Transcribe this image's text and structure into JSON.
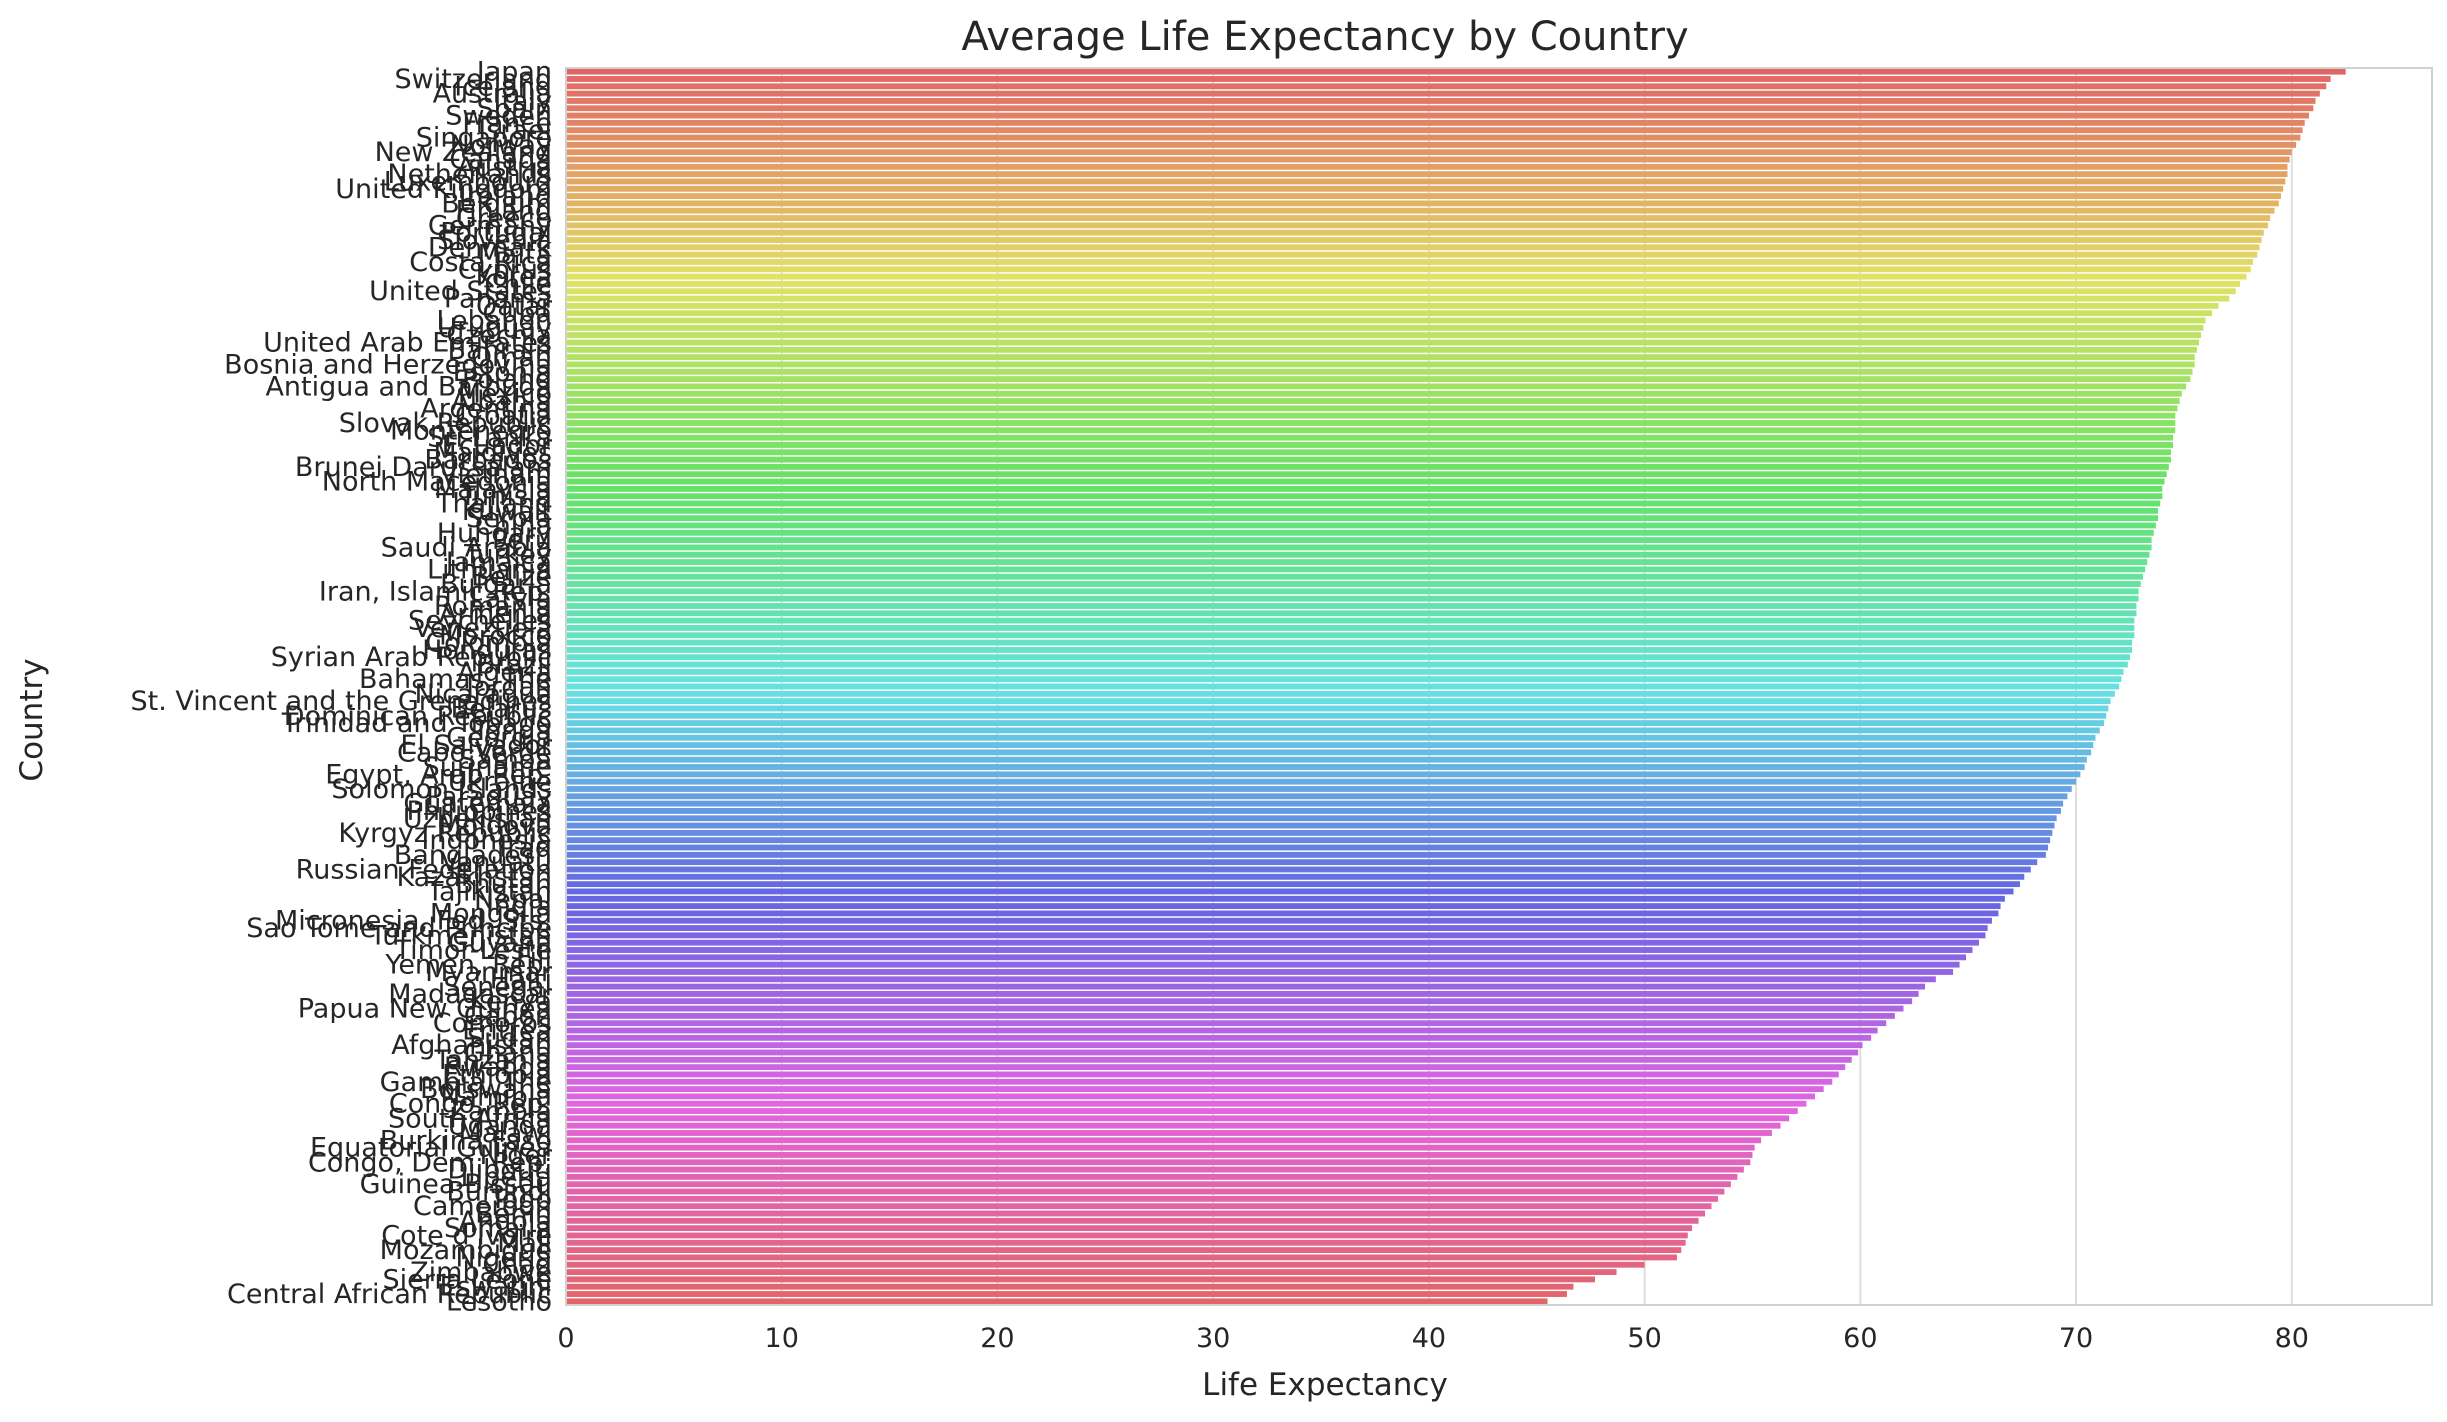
{
  "chart_data": {
    "type": "bar",
    "orientation": "horizontal",
    "title": "Average Life Expectancy by Country",
    "xlabel": "Life Expectancy",
    "ylabel": "Country",
    "xlim": [
      0,
      86.5
    ],
    "xticks": [
      0,
      10,
      20,
      30,
      40,
      50,
      60,
      70,
      80
    ],
    "grid": "vertical",
    "palette": "husl",
    "categories": [
      "Japan",
      "Switzerland",
      "Iceland",
      "Australia",
      "Italy",
      "Spain",
      "Sweden",
      "France",
      "Israel",
      "Singapore",
      "Norway",
      "New Zealand",
      "Canada",
      "Austria",
      "Netherlands",
      "Luxembourg",
      "United Kingdom",
      "Ireland",
      "Belgium",
      "Finland",
      "Greece",
      "Germany",
      "Portugal",
      "Slovenia",
      "Denmark",
      "Malta",
      "Costa Rica",
      "Cyprus",
      "Korea",
      "Chile",
      "United States",
      "Panama",
      "Qatar",
      "Cuba",
      "Lebanon",
      "Uruguay",
      "Czechia",
      "United Arab Emirates",
      "Bahrain",
      "Oman",
      "Bosnia and Herzegovina",
      "Estonia",
      "Poland",
      "Antigua and Barbuda",
      "Mexico",
      "Albania",
      "Argentina",
      "Croatia",
      "Slovak Republic",
      "Montenegro",
      "Sri Lanka",
      "Ecuador",
      "Maldives",
      "Barbados",
      "Brunei Darussalam",
      "Vietnam",
      "North Macedonia",
      "Malaysia",
      "Tunisia",
      "Thailand",
      "Kuwait",
      "Serbia",
      "China",
      "Hungary",
      "Peru",
      "Saudi Arabia",
      "Turkey",
      "Jamaica",
      "Lithuania",
      "Belize",
      "Bulgaria",
      "Iran, Islamic Rep.",
      "Latvia",
      "Romania",
      "Armenia",
      "Seychelles",
      "Venezuela",
      "Morocco",
      "Colombia",
      "Honduras",
      "Syrian Arab Republic",
      "Brazil",
      "Algeria",
      "Bahamas, The",
      "Jordan",
      "Nicaragua",
      "St. Vincent and the Grenadines",
      "Belarus",
      "Dominican Republic",
      "Trinidad and Tobago",
      "Tonga",
      "Georgia",
      "El Salvador",
      "Cabo Verde",
      "Samoa",
      "Suriname",
      "Egypt, Arab Rep.",
      "Ukraine",
      "Solomon Islands",
      "Paraguay",
      "Guatemala",
      "Philippines",
      "Uzbekistan",
      "Moldova",
      "Kyrgyz Republic",
      "Indonesia",
      "Iraq",
      "Bangladesh",
      "Vanuatu",
      "Russian Federation",
      "Kazakhstan",
      "Bhutan",
      "Tajikistan",
      "Nepal",
      "India",
      "Mongolia",
      "Micronesia, Fed. Sts.",
      "Sao Tome and Principe",
      "Turkmenistan",
      "Guyana",
      "Timor-Leste",
      "Fiji",
      "Yemen, Rep.",
      "Myanmar",
      "Haiti",
      "Senegal",
      "Madagascar",
      "Kenya",
      "Papua New Guinea",
      "Gabon",
      "Comoros",
      "Eritrea",
      "Sudan",
      "Afghanistan",
      "Ghana",
      "Tanzania",
      "Rwanda",
      "Ethiopia",
      "Gambia, The",
      "Botswana",
      "Namibia",
      "Congo, Rep.",
      "Zambia",
      "South Africa",
      "Uganda",
      "Malawi",
      "Burkina Faso",
      "Equatorial Guinea",
      "Niger",
      "Congo, Dem. Rep.",
      "Djibouti",
      "Liberia",
      "Guinea-Bissau",
      "Burundi",
      "Togo",
      "Cameroon",
      "Benin",
      "Angola",
      "Somalia",
      "Cote d'Ivoire",
      "Mali",
      "Mozambique",
      "Nigeria",
      "Chad",
      "Zimbabwe",
      "Sierra Leone",
      "Eswatini",
      "Central African Republic",
      "Lesotho"
    ],
    "values": [
      82.5,
      81.8,
      81.6,
      81.3,
      81.1,
      81.0,
      80.8,
      80.6,
      80.5,
      80.4,
      80.2,
      80.0,
      79.9,
      79.8,
      79.8,
      79.7,
      79.6,
      79.5,
      79.4,
      79.2,
      79.0,
      78.9,
      78.7,
      78.6,
      78.5,
      78.4,
      78.2,
      78.1,
      77.9,
      77.6,
      77.4,
      77.1,
      76.6,
      76.3,
      76.0,
      75.9,
      75.8,
      75.7,
      75.6,
      75.5,
      75.5,
      75.4,
      75.3,
      75.1,
      74.9,
      74.8,
      74.7,
      74.6,
      74.6,
      74.6,
      74.5,
      74.5,
      74.4,
      74.4,
      74.3,
      74.2,
      74.1,
      74.0,
      74.0,
      73.9,
      73.8,
      73.8,
      73.7,
      73.6,
      73.5,
      73.5,
      73.4,
      73.3,
      73.2,
      73.1,
      73.0,
      72.9,
      72.9,
      72.8,
      72.8,
      72.7,
      72.7,
      72.7,
      72.6,
      72.6,
      72.5,
      72.4,
      72.2,
      72.1,
      72.0,
      71.8,
      71.6,
      71.5,
      71.4,
      71.3,
      71.1,
      70.9,
      70.8,
      70.7,
      70.5,
      70.4,
      70.2,
      70.0,
      69.8,
      69.6,
      69.4,
      69.3,
      69.1,
      69.0,
      68.9,
      68.8,
      68.7,
      68.6,
      68.2,
      67.9,
      67.6,
      67.4,
      67.1,
      66.7,
      66.5,
      66.4,
      66.1,
      65.9,
      65.8,
      65.5,
      65.2,
      64.9,
      64.6,
      64.3,
      63.5,
      63.0,
      62.7,
      62.4,
      62.0,
      61.6,
      61.2,
      60.8,
      60.5,
      60.1,
      59.9,
      59.6,
      59.3,
      59.0,
      58.7,
      58.3,
      57.9,
      57.5,
      57.1,
      56.7,
      56.3,
      55.9,
      55.4,
      55.1,
      55.0,
      54.9,
      54.6,
      54.3,
      54.0,
      53.7,
      53.4,
      53.1,
      52.8,
      52.5,
      52.2,
      52.0,
      51.9,
      51.7,
      51.5,
      50.0,
      48.7,
      47.7,
      46.7,
      46.4,
      45.5
    ]
  }
}
